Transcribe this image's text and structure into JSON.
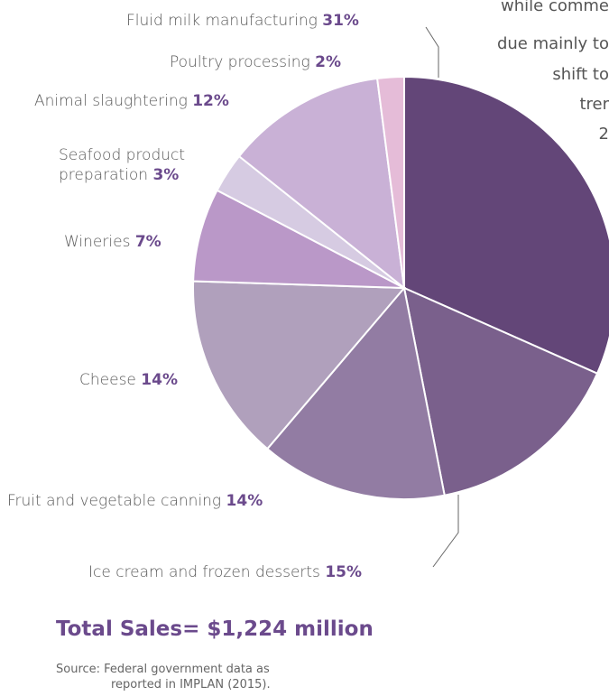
{
  "chart_data": {
    "type": "pie",
    "title": "",
    "slices": [
      {
        "label": "Fluid milk manufacturing",
        "pct": "31%",
        "value": 31,
        "color": "#634678"
      },
      {
        "label": "Ice cream and frozen desserts",
        "pct": "15%",
        "value": 15,
        "color": "#7a608c"
      },
      {
        "label": "Fruit and vegetable canning",
        "pct": "14%",
        "value": 14,
        "color": "#927ca3"
      },
      {
        "label": "Cheese",
        "pct": "14%",
        "value": 14,
        "color": "#b0a0bc"
      },
      {
        "label": "Wineries",
        "pct": "7%",
        "value": 7,
        "color": "#ba98c8"
      },
      {
        "label": "Seafood product preparation",
        "label_line1": "Seafood product",
        "label_line2": "preparation",
        "pct": "3%",
        "value": 3,
        "color": "#d6cbe2"
      },
      {
        "label": "Animal slaughtering",
        "pct": "12%",
        "value": 12,
        "color": "#c9b1d6"
      },
      {
        "label": "Poultry processing",
        "pct": "2%",
        "value": 2,
        "color": "#e5bcd8"
      }
    ]
  },
  "total": "Total Sales= $1,224 million",
  "source_line1": "Source: Federal government data as",
  "source_line2": "reported in IMPLAN (2015).",
  "side_text": {
    "line1": "while comme",
    "line2": "due mainly to",
    "line3": "shift to",
    "line4": "trer",
    "line5": "2"
  }
}
